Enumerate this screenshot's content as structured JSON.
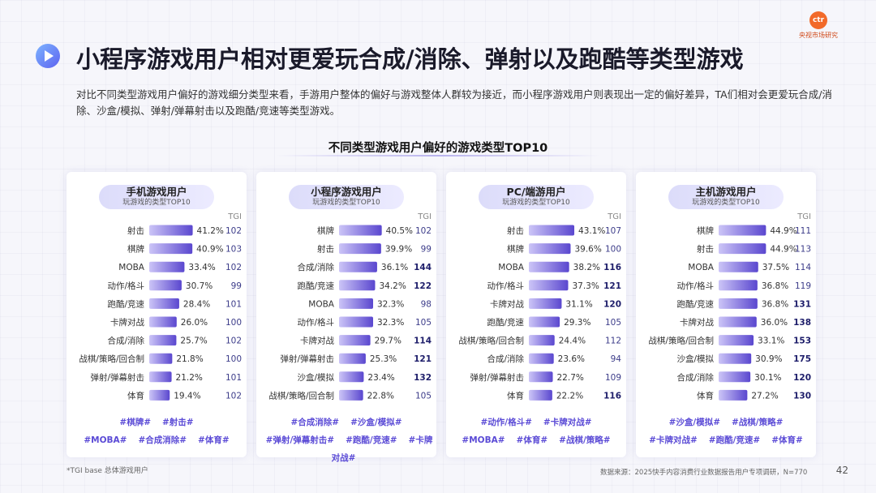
{
  "header": {
    "logo_mark": "ctr",
    "logo_text": "央视市场研究",
    "title": "小程序游戏用户相对更爱玩合成/消除、弹射以及跑酷等类型游戏",
    "intro": "对比不同类型游戏用户偏好的游戏细分类型来看，手游用户整体的偏好与游戏整体人群较为接近，而小程序游戏用户则表现出一定的偏好差异，TA们相对会更爱玩合成/消除、沙盒/模拟、弹射/弹幕射击以及跑酷/竞速等类型游戏。"
  },
  "colors": {
    "bar_start": "#ccc5f7",
    "bar_end": "#5a47cf",
    "highlight_tgi": "#1d1d6a"
  },
  "chart_data": {
    "title": "不同类型游戏用户偏好的游戏类型TOP10",
    "type": "bar",
    "panels": [
      {
        "name": "手机游戏用户",
        "subtitle": "玩游戏的类型TOP10",
        "tgi_label": "TGI",
        "categories": [
          "射击",
          "棋牌",
          "MOBA",
          "动作/格斗",
          "跑酷/竞速",
          "卡牌对战",
          "合成/消除",
          "战棋/策略/回合制",
          "弹射/弹幕射击",
          "体育"
        ],
        "values": [
          41.2,
          40.9,
          33.4,
          30.7,
          28.4,
          26.0,
          25.7,
          21.8,
          21.2,
          19.4
        ],
        "value_labels": [
          "41.2%",
          "40.9%",
          "33.4%",
          "30.7%",
          "28.4%",
          "26.0%",
          "25.7%",
          "21.8%",
          "21.2%",
          "19.4%"
        ],
        "tgi": [
          102,
          103,
          102,
          99,
          101,
          100,
          102,
          100,
          101,
          102
        ],
        "tgi_highlight": [
          false,
          false,
          false,
          false,
          false,
          false,
          false,
          false,
          false,
          false
        ],
        "tags": [
          [
            "#棋牌#",
            "#射击#"
          ],
          [
            "#MOBA#",
            "#合成消除#",
            "#体育#"
          ]
        ]
      },
      {
        "name": "小程序游戏用户",
        "subtitle": "玩游戏的类型TOP10",
        "tgi_label": "TGI",
        "categories": [
          "棋牌",
          "射击",
          "合成/消除",
          "跑酷/竞速",
          "MOBA",
          "动作/格斗",
          "卡牌对战",
          "弹射/弹幕射击",
          "沙盒/模拟",
          "战棋/策略/回合制"
        ],
        "values": [
          40.5,
          39.9,
          36.1,
          34.2,
          32.3,
          32.3,
          29.7,
          25.3,
          23.4,
          22.8
        ],
        "value_labels": [
          "40.5%",
          "39.9%",
          "36.1%",
          "34.2%",
          "32.3%",
          "32.3%",
          "29.7%",
          "25.3%",
          "23.4%",
          "22.8%"
        ],
        "tgi": [
          102,
          99,
          144,
          122,
          98,
          105,
          114,
          121,
          132,
          105
        ],
        "tgi_highlight": [
          false,
          false,
          true,
          true,
          false,
          false,
          true,
          true,
          true,
          false
        ],
        "tags": [
          [
            "#合成消除#",
            "#沙盒/模拟#"
          ],
          [
            "#弹射/弹幕射击#",
            "#跑酷/竞速#",
            "#卡牌对战#"
          ]
        ]
      },
      {
        "name": "PC/端游用户",
        "subtitle": "玩游戏的类型TOP10",
        "tgi_label": "TGI",
        "categories": [
          "射击",
          "棋牌",
          "MOBA",
          "动作/格斗",
          "卡牌对战",
          "跑酷/竞速",
          "战棋/策略/回合制",
          "合成/消除",
          "弹射/弹幕射击",
          "体育"
        ],
        "values": [
          43.1,
          39.6,
          38.2,
          37.3,
          31.1,
          29.3,
          24.4,
          23.6,
          22.7,
          22.2
        ],
        "value_labels": [
          "43.1%",
          "39.6%",
          "38.2%",
          "37.3%",
          "31.1%",
          "29.3%",
          "24.4%",
          "23.6%",
          "22.7%",
          "22.2%"
        ],
        "tgi": [
          107,
          100,
          116,
          121,
          120,
          105,
          112,
          94,
          109,
          116
        ],
        "tgi_highlight": [
          false,
          false,
          true,
          true,
          true,
          false,
          false,
          false,
          false,
          true
        ],
        "tags": [
          [
            "#动作/格斗#",
            "#卡牌对战#"
          ],
          [
            "#MOBA#",
            "#体育#",
            "#战棋/策略#"
          ]
        ]
      },
      {
        "name": "主机游戏用户",
        "subtitle": "玩游戏的类型TOP10",
        "tgi_label": "TGI",
        "categories": [
          "棋牌",
          "射击",
          "MOBA",
          "动作/格斗",
          "跑酷/竞速",
          "卡牌对战",
          "战棋/策略/回合制",
          "沙盒/模拟",
          "合成/消除",
          "体育"
        ],
        "values": [
          44.9,
          44.9,
          37.5,
          36.8,
          36.8,
          36.0,
          33.1,
          30.9,
          30.1,
          27.2
        ],
        "value_labels": [
          "44.9%",
          "44.9%",
          "37.5%",
          "36.8%",
          "36.8%",
          "36.0%",
          "33.1%",
          "30.9%",
          "30.1%",
          "27.2%"
        ],
        "tgi": [
          111,
          113,
          114,
          119,
          131,
          138,
          153,
          175,
          120,
          130
        ],
        "tgi_highlight": [
          false,
          false,
          false,
          false,
          true,
          true,
          true,
          true,
          true,
          true
        ],
        "tags": [
          [
            "#沙盒/模拟#",
            "#战棋/策略#"
          ],
          [
            "#卡牌对战#",
            "#跑酷/竞速#",
            "#体育#"
          ]
        ]
      }
    ]
  },
  "footer": {
    "footnote": "*TGI base 总体游戏用户",
    "source": "数据来源：2025快手内容消费行业数据报告用户专项调研，N=770",
    "page": "42"
  }
}
